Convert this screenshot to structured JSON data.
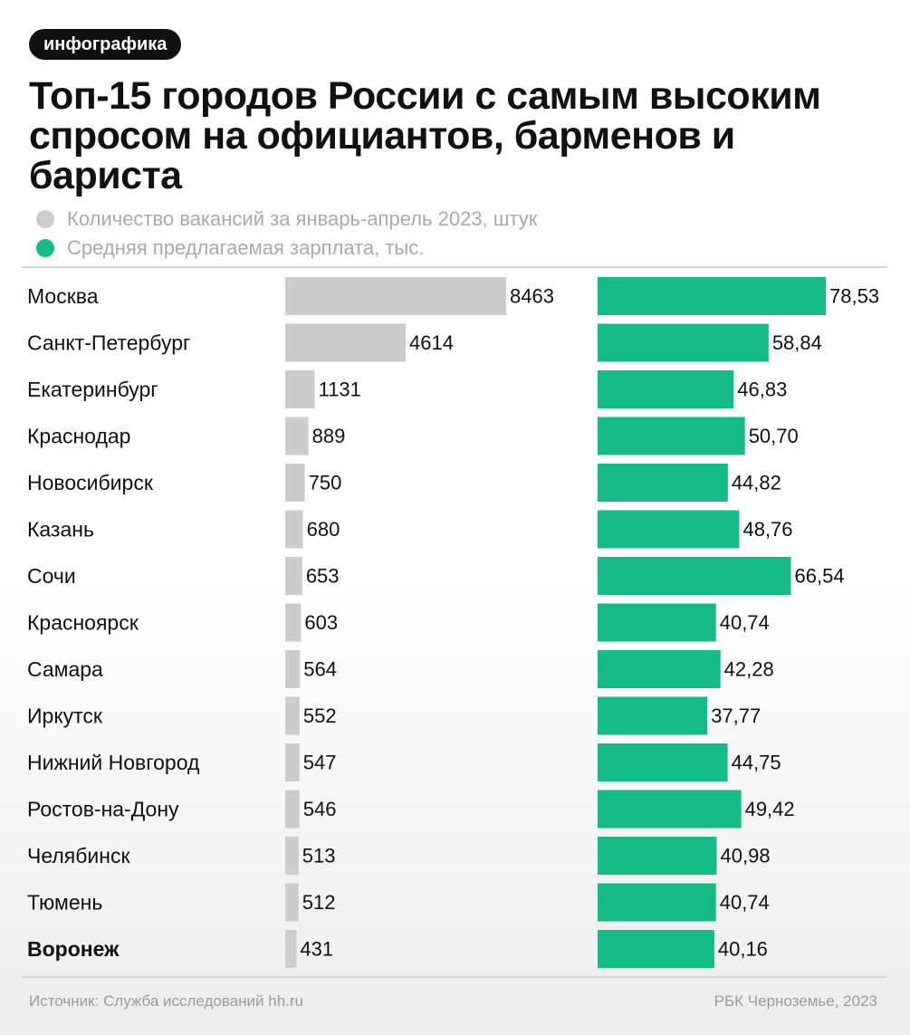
{
  "tag": "инфографика",
  "title": "Топ-15 городов России с самым высоким спросом на официантов, барменов и бариста",
  "legend": [
    {
      "label": "Количество вакансий за январь-апрель 2023, штук",
      "color": "#cccccc"
    },
    {
      "label": "Средняя предлагаемая зарплата, тыс.",
      "color": "#14bb87"
    }
  ],
  "footer": {
    "source": "Источник: Служба исследований hh.ru",
    "credit": "РБК Черноземье, 2023"
  },
  "chart_data": {
    "type": "bar",
    "categories": [
      "Москва",
      "Санкт-Петербург",
      "Екатеринбург",
      "Краснодар",
      "Новосибирск",
      "Казань",
      "Сочи",
      "Красноярск",
      "Самара",
      "Иркутск",
      "Нижний Новгород",
      "Ростов-на-Дону",
      "Челябинск",
      "Тюмень",
      "Воронеж"
    ],
    "highlight": "Воронеж",
    "series": [
      {
        "name": "Количество вакансий за январь-апрель 2023, штук",
        "color": "#cccccc",
        "values": [
          8463,
          4614,
          1131,
          889,
          750,
          680,
          653,
          603,
          564,
          552,
          547,
          546,
          513,
          512,
          431
        ],
        "labels": [
          "8463",
          "4614",
          "1131",
          "889",
          "750",
          "680",
          "653",
          "603",
          "564",
          "552",
          "547",
          "546",
          "513",
          "512",
          "431"
        ]
      },
      {
        "name": "Средняя предлагаемая зарплата, тыс.",
        "color": "#14bb87",
        "values": [
          78.53,
          58.84,
          46.83,
          50.7,
          44.82,
          48.76,
          66.54,
          40.74,
          42.28,
          37.77,
          44.75,
          49.42,
          40.98,
          40.74,
          40.16
        ],
        "labels": [
          "78,53",
          "58,84",
          "46,83",
          "50,70",
          "44,82",
          "48,76",
          "66,54",
          "40,74",
          "42,28",
          "37,77",
          "44,75",
          "49,42",
          "40,98",
          "40,74",
          "40,16"
        ]
      }
    ]
  }
}
